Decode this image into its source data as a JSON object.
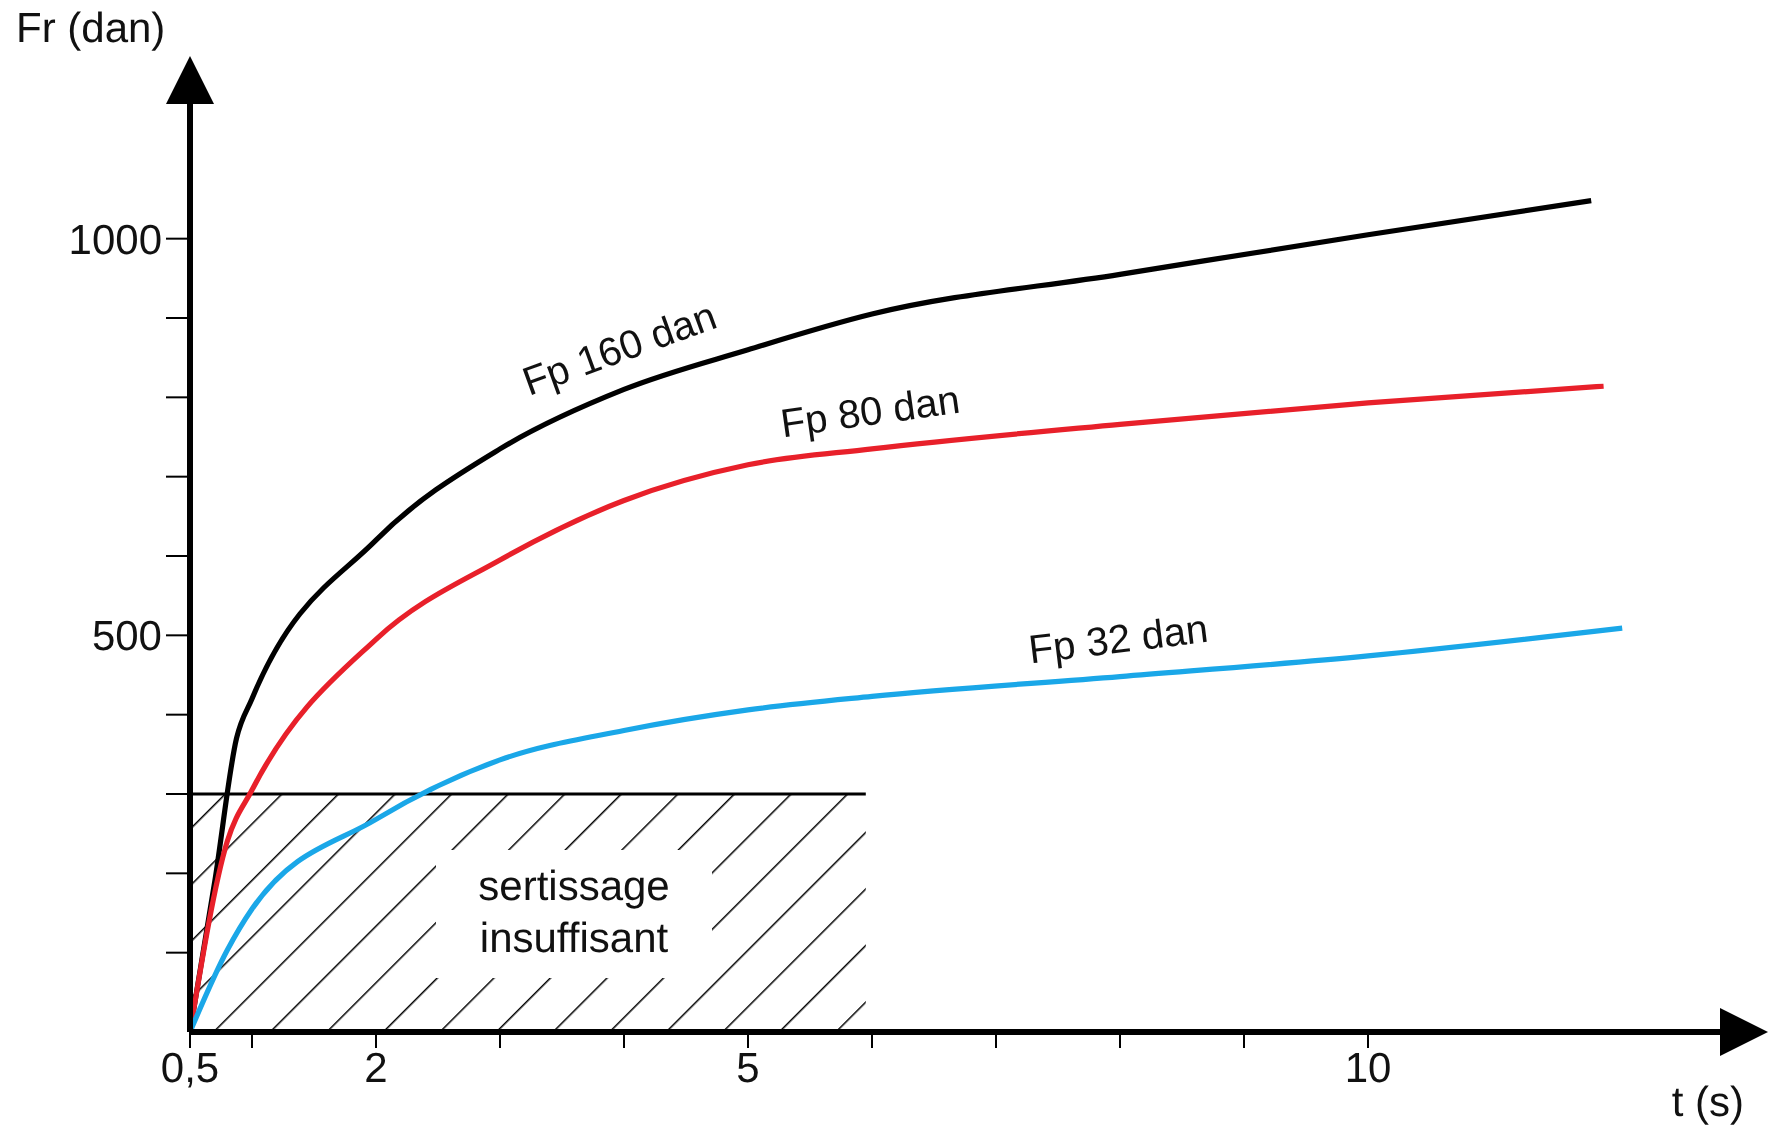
{
  "chart_data": {
    "type": "line",
    "xlabel": "t (s)",
    "ylabel": "Fr (dan)",
    "xlim": [
      0.5,
      13
    ],
    "ylim": [
      0,
      1200
    ],
    "xticks": [
      {
        "value": 0.5,
        "label": "0,5"
      },
      {
        "value": 1,
        "label": null
      },
      2,
      {
        "value": 3,
        "label": null
      },
      {
        "value": 4,
        "label": null
      },
      5,
      {
        "value": 6,
        "label": null
      },
      {
        "value": 7,
        "label": null
      },
      {
        "value": 8,
        "label": null
      },
      {
        "value": 9,
        "label": null
      },
      10
    ],
    "yticks": [
      {
        "value": 100,
        "label": null
      },
      {
        "value": 200,
        "label": null
      },
      {
        "value": 300,
        "label": null
      },
      {
        "value": 400,
        "label": null
      },
      500,
      {
        "value": 600,
        "label": null
      },
      {
        "value": 700,
        "label": null
      },
      {
        "value": 800,
        "label": null
      },
      {
        "value": 900,
        "label": null
      },
      1000
    ],
    "grid": false,
    "legend": false,
    "marker": "none",
    "line_style": "solid",
    "series": [
      {
        "type": "area",
        "name": "sertissage insuffisant",
        "color": "#000000",
        "x": [
          0.5,
          5.95
        ],
        "values": [
          300,
          300
        ]
      },
      {
        "name": "Fp 160 dan",
        "color": "#000000",
        "x": [
          0.5,
          0.7,
          0.875,
          1,
          2,
          3,
          4,
          5,
          6,
          8,
          10,
          11.8
        ],
        "values": [
          0,
          190,
          370,
          420,
          620,
          735,
          810,
          860,
          905,
          955,
          1005,
          1048
        ]
      },
      {
        "name": "Fp 80 dan",
        "color": "#e8202a",
        "x": [
          0.5,
          0.8,
          1,
          2,
          3,
          4,
          5,
          6,
          8,
          10,
          11.9
        ],
        "values": [
          0,
          240,
          305,
          495,
          595,
          670,
          715,
          735,
          766,
          793,
          814
        ]
      },
      {
        "name": "Fp 32 dan",
        "color": "#1aa7e8",
        "x": [
          0.5,
          0.8,
          1,
          2,
          3,
          4,
          5,
          6,
          8,
          10,
          12.05
        ],
        "values": [
          0,
          103,
          155,
          268,
          343,
          380,
          406,
          423,
          448,
          474,
          509
        ]
      }
    ]
  }
}
